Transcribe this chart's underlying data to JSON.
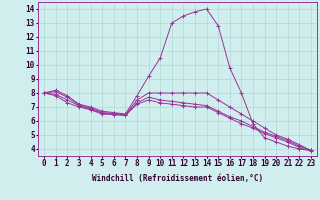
{
  "x": [
    0,
    1,
    2,
    3,
    4,
    5,
    6,
    7,
    8,
    9,
    10,
    11,
    12,
    13,
    14,
    15,
    16,
    17,
    18,
    19,
    20,
    21,
    22,
    23
  ],
  "series": [
    [
      8.0,
      8.2,
      7.8,
      7.2,
      7.0,
      6.7,
      6.6,
      6.5,
      7.8,
      9.2,
      10.5,
      13.0,
      13.5,
      13.8,
      14.0,
      12.8,
      9.8,
      8.0,
      5.8,
      4.8,
      4.5,
      4.2,
      4.0,
      3.9
    ],
    [
      8.0,
      8.1,
      7.7,
      7.15,
      6.9,
      6.6,
      6.55,
      6.45,
      7.5,
      8.0,
      8.0,
      8.0,
      8.0,
      8.0,
      8.0,
      7.5,
      7.0,
      6.5,
      6.0,
      5.5,
      5.0,
      4.7,
      4.3,
      3.9
    ],
    [
      8.0,
      7.9,
      7.5,
      7.1,
      6.85,
      6.55,
      6.5,
      6.4,
      7.3,
      7.7,
      7.5,
      7.4,
      7.3,
      7.2,
      7.1,
      6.7,
      6.3,
      6.0,
      5.6,
      5.2,
      4.9,
      4.6,
      4.2,
      3.9
    ],
    [
      8.0,
      7.8,
      7.3,
      7.0,
      6.8,
      6.5,
      6.45,
      6.4,
      7.2,
      7.5,
      7.3,
      7.2,
      7.1,
      7.0,
      7.0,
      6.6,
      6.2,
      5.8,
      5.5,
      5.1,
      4.8,
      4.5,
      4.1,
      3.85
    ]
  ],
  "line_color": "#993399",
  "marker": "+",
  "markersize": 2.5,
  "linewidth": 0.7,
  "bg_color": "#d0eeee",
  "grid_color": "#b0d8d8",
  "xlabel": "Windchill (Refroidissement éolien,°C)",
  "xlabel_fontsize": 5.5,
  "ylabel_ticks": [
    4,
    5,
    6,
    7,
    8,
    9,
    10,
    11,
    12,
    13,
    14
  ],
  "xlim": [
    -0.5,
    23.5
  ],
  "ylim": [
    3.5,
    14.5
  ],
  "tick_fontsize": 5.5,
  "grid_linewidth": 0.5,
  "xtick_labels": [
    "0",
    "1",
    "2",
    "3",
    "4",
    "5",
    "6",
    "7",
    "8",
    "9",
    "10",
    "11",
    "12",
    "13",
    "14",
    "15",
    "16",
    "17",
    "18",
    "19",
    "20",
    "21",
    "22",
    "23"
  ]
}
